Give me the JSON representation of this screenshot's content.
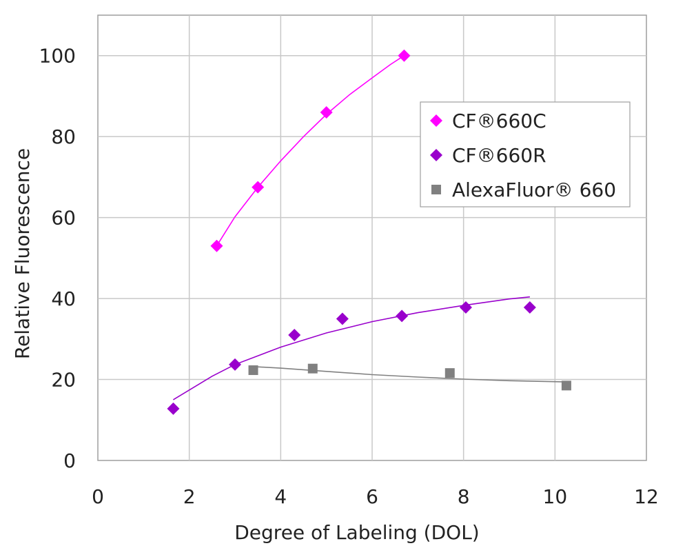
{
  "chart_data": {
    "type": "scatter",
    "title": "",
    "xlabel": "Degree of Labeling (DOL)",
    "ylabel": "Relative Fluorescence",
    "xlim": [
      0,
      12
    ],
    "ylim": [
      0,
      110
    ],
    "xticks": [
      0,
      2,
      4,
      6,
      8,
      10,
      12
    ],
    "yticks": [
      0,
      20,
      40,
      60,
      80,
      100
    ],
    "grid": true,
    "legend_position": "top-right",
    "series": [
      {
        "name": "CF®660C",
        "marker": "diamond",
        "color": "#ff00ff",
        "points": [
          [
            2.6,
            53
          ],
          [
            3.5,
            67.5
          ],
          [
            5.0,
            86
          ],
          [
            6.7,
            100
          ]
        ],
        "trendline": [
          [
            2.6,
            53
          ],
          [
            3.0,
            60.2
          ],
          [
            3.5,
            67.5
          ],
          [
            4.0,
            74.0
          ],
          [
            4.5,
            80.0
          ],
          [
            5.0,
            85.5
          ],
          [
            5.5,
            90.3
          ],
          [
            6.0,
            94.5
          ],
          [
            6.4,
            97.8
          ],
          [
            6.7,
            100
          ]
        ]
      },
      {
        "name": "CF®660R",
        "marker": "diamond",
        "color": "#9900cc",
        "points": [
          [
            1.65,
            12.8
          ],
          [
            3.0,
            23.7
          ],
          [
            4.3,
            31.0
          ],
          [
            5.35,
            35.0
          ],
          [
            6.65,
            35.7
          ],
          [
            8.05,
            37.8
          ],
          [
            9.45,
            37.8
          ]
        ],
        "trendline": [
          [
            1.65,
            15.0
          ],
          [
            2.0,
            17.4
          ],
          [
            2.5,
            20.8
          ],
          [
            3.0,
            23.7
          ],
          [
            4.0,
            28.0
          ],
          [
            5.0,
            31.5
          ],
          [
            6.0,
            34.3
          ],
          [
            7.0,
            36.5
          ],
          [
            8.0,
            38.3
          ],
          [
            9.0,
            39.9
          ],
          [
            9.45,
            40.4
          ]
        ]
      },
      {
        "name": "AlexaFluor® 660",
        "marker": "square",
        "color": "#808080",
        "points": [
          [
            3.4,
            22.3
          ],
          [
            4.7,
            22.7
          ],
          [
            7.7,
            21.6
          ],
          [
            10.25,
            18.5
          ]
        ],
        "trendline": [
          [
            3.4,
            23.2
          ],
          [
            4.0,
            22.8
          ],
          [
            5.0,
            22.0
          ],
          [
            6.0,
            21.2
          ],
          [
            7.0,
            20.6
          ],
          [
            8.0,
            20.1
          ],
          [
            9.0,
            19.7
          ],
          [
            10.25,
            19.4
          ]
        ]
      }
    ]
  }
}
